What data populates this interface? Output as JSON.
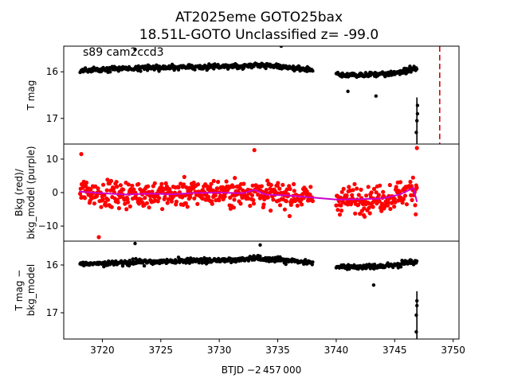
{
  "title_lines": [
    "AT2025eme  GOTO25bax",
    "18.51L-GOTO Unclassified z= -99.0"
  ],
  "annotation": "s89 cam2ccd3",
  "x_axis": {
    "label": "BTJD −2 457 000",
    "ticks": [
      3720,
      3725,
      3730,
      3735,
      3740,
      3745,
      3750
    ],
    "range": [
      3716.7,
      3750.5
    ]
  },
  "panels": [
    {
      "id": "tmag",
      "ylabel_lines": [
        "T mag"
      ],
      "inverted": true,
      "ylim": [
        17.55,
        15.45
      ],
      "yticks": [
        16,
        17
      ]
    },
    {
      "id": "bkg",
      "ylabel_lines": [
        "Bkg (red)/",
        "bkg_model (purple)"
      ],
      "inverted": false,
      "ylim": [
        -14.5,
        14.5
      ],
      "yticks": [
        -10,
        0,
        10
      ]
    },
    {
      "id": "tmag-bkg",
      "ylabel_lines": [
        "T mag −",
        "bkg_model"
      ],
      "inverted": true,
      "ylim": [
        17.55,
        15.5
      ],
      "yticks": [
        16,
        17
      ]
    }
  ],
  "colors": {
    "mag_points": "#000000",
    "bkg_points": "#ff0000",
    "bkg_model": "#cc00cc",
    "marker_line": "#dd0000"
  },
  "chart_data": {
    "type": "scatter",
    "x_unit": "BTJD - 2457000",
    "segments": [
      [
        3718.1,
        3738.0
      ],
      [
        3740.0,
        3746.9
      ]
    ],
    "vertical_marker": {
      "x": 3748.85,
      "style": "dashed",
      "color": "red"
    },
    "series": [
      {
        "panel": "tmag",
        "points": [
          [
            3718.0,
            15.98
          ],
          [
            3719.0,
            15.96
          ],
          [
            3720.0,
            15.95
          ],
          [
            3721.0,
            15.94
          ],
          [
            3722.0,
            15.93
          ],
          [
            3723.0,
            15.92
          ],
          [
            3724.0,
            15.92
          ],
          [
            3725.0,
            15.91
          ],
          [
            3726.0,
            15.91
          ],
          [
            3727.0,
            15.9
          ],
          [
            3728.0,
            15.9
          ],
          [
            3729.0,
            15.89
          ],
          [
            3730.0,
            15.89
          ],
          [
            3731.0,
            15.88
          ],
          [
            3732.0,
            15.88
          ],
          [
            3733.0,
            15.86
          ],
          [
            3734.0,
            15.86
          ],
          [
            3735.0,
            15.88
          ],
          [
            3736.0,
            15.9
          ],
          [
            3737.0,
            15.93
          ],
          [
            3738.0,
            15.95
          ],
          [
            3740.0,
            16.05
          ],
          [
            3741.0,
            16.07
          ],
          [
            3742.0,
            16.08
          ],
          [
            3743.0,
            16.06
          ],
          [
            3744.0,
            16.05
          ],
          [
            3745.0,
            16.03
          ],
          [
            3746.0,
            15.97
          ],
          [
            3746.6,
            15.93
          ]
        ],
        "spread": 0.09,
        "outliers": [
          [
            3722.8,
            15.52
          ],
          [
            3735.3,
            15.45
          ],
          [
            3741.0,
            16.42
          ],
          [
            3743.4,
            16.52
          ],
          [
            3746.95,
            16.72
          ],
          [
            3746.95,
            16.9
          ],
          [
            3746.9,
            17.05
          ],
          [
            3746.85,
            17.3
          ]
        ]
      },
      {
        "panel": "bkg",
        "name": "Bkg",
        "points": [
          [
            3718.0,
            0.3
          ],
          [
            3720.0,
            -0.2
          ],
          [
            3722.0,
            -0.6
          ],
          [
            3724.0,
            -0.3
          ],
          [
            3726.0,
            -0.5
          ],
          [
            3728.0,
            -0.1
          ],
          [
            3730.0,
            0.0
          ],
          [
            3732.0,
            -0.2
          ],
          [
            3733.0,
            0.8
          ],
          [
            3734.0,
            -0.6
          ],
          [
            3736.0,
            -0.9
          ],
          [
            3738.0,
            -1.5
          ],
          [
            3740.0,
            -2.1
          ],
          [
            3742.0,
            -2.0
          ],
          [
            3744.0,
            -1.7
          ],
          [
            3745.5,
            -0.5
          ],
          [
            3746.6,
            1.4
          ]
        ],
        "spread": 6.5,
        "outliers": [
          [
            3718.2,
            11.5
          ],
          [
            3719.7,
            -13.3
          ],
          [
            3733.0,
            12.7
          ],
          [
            3746.9,
            13.3
          ],
          [
            3746.8,
            -6.5
          ]
        ]
      },
      {
        "panel": "bkg",
        "name": "bkg_model",
        "points": [
          [
            3718.0,
            0.3
          ],
          [
            3720.0,
            -0.2
          ],
          [
            3722.0,
            -0.6
          ],
          [
            3724.0,
            -0.3
          ],
          [
            3726.0,
            -0.5
          ],
          [
            3728.0,
            -0.1
          ],
          [
            3730.0,
            0.0
          ],
          [
            3732.0,
            -0.2
          ],
          [
            3733.0,
            0.8
          ],
          [
            3734.0,
            -0.6
          ],
          [
            3736.0,
            -0.9
          ],
          [
            3738.0,
            -1.5
          ],
          [
            3740.0,
            -2.1
          ],
          [
            3742.0,
            -2.0
          ],
          [
            3744.0,
            -1.7
          ],
          [
            3745.5,
            -0.5
          ],
          [
            3746.6,
            1.4
          ],
          [
            3746.9,
            -2.8
          ]
        ]
      },
      {
        "panel": "tmag-bkg",
        "points": [
          [
            3718.0,
            15.98
          ],
          [
            3719.0,
            15.97
          ],
          [
            3720.0,
            15.96
          ],
          [
            3721.0,
            15.95
          ],
          [
            3722.0,
            15.95
          ],
          [
            3723.0,
            15.94
          ],
          [
            3724.0,
            15.93
          ],
          [
            3725.0,
            15.93
          ],
          [
            3726.0,
            15.92
          ],
          [
            3727.0,
            15.92
          ],
          [
            3728.0,
            15.91
          ],
          [
            3729.0,
            15.91
          ],
          [
            3730.0,
            15.9
          ],
          [
            3731.0,
            15.89
          ],
          [
            3732.0,
            15.88
          ],
          [
            3733.0,
            15.86
          ],
          [
            3734.0,
            15.87
          ],
          [
            3735.0,
            15.89
          ],
          [
            3736.0,
            15.91
          ],
          [
            3737.0,
            15.93
          ],
          [
            3738.0,
            15.95
          ],
          [
            3740.0,
            16.03
          ],
          [
            3741.0,
            16.05
          ],
          [
            3742.0,
            16.05
          ],
          [
            3743.0,
            16.04
          ],
          [
            3744.0,
            16.02
          ],
          [
            3745.0,
            16.0
          ],
          [
            3746.0,
            15.96
          ],
          [
            3746.6,
            15.94
          ]
        ],
        "spread": 0.09,
        "outliers": [
          [
            3722.8,
            15.55
          ],
          [
            3733.5,
            15.58
          ],
          [
            3743.2,
            16.42
          ],
          [
            3746.9,
            16.75
          ],
          [
            3746.9,
            16.85
          ],
          [
            3746.85,
            17.05
          ],
          [
            3746.85,
            17.4
          ]
        ]
      }
    ]
  }
}
